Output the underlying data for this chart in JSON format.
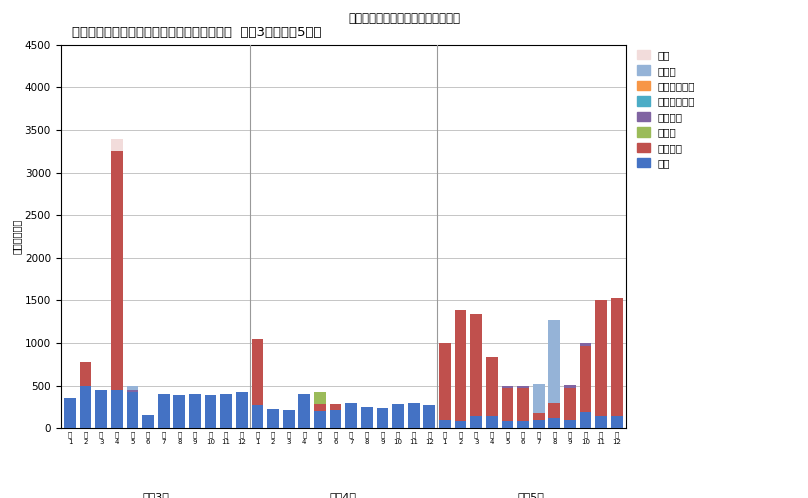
{
  "title_outer": "病因物質別月別発生状況（患者数）",
  "title_inner": "病因物質別患者数の月別発生状況（全体事例  令和3年～令和5年）",
  "ylabel": "患者数（人）",
  "year_labels": [
    "令和3年",
    "令和4年",
    "令和5年"
  ],
  "colors_order": [
    "細菌",
    "ウイルス",
    "寄生虫",
    "化学物質",
    "植物性自然毒",
    "動物性自然毒",
    "その他",
    "不明"
  ],
  "colors": {
    "細菌": "#4472C4",
    "ウイルス": "#C0504D",
    "寄生虫": "#9BBB59",
    "化学物質": "#8064A2",
    "植物性自然毒": "#4BACC6",
    "動物性自然毒": "#F79646",
    "その他": "#95B3D7",
    "不明": "#F2DCDB"
  },
  "legend_order": [
    "不明",
    "その他",
    "動物性自然毒",
    "植物性自然毒",
    "化学物質",
    "寄生虫",
    "ウイルス",
    "細菌"
  ],
  "ylim": [
    0,
    4500
  ],
  "yticks": [
    0,
    500,
    1000,
    1500,
    2000,
    2500,
    3000,
    3500,
    4000,
    4500
  ],
  "bacteria": [
    350,
    500,
    450,
    450,
    420,
    150,
    400,
    390,
    400,
    390,
    400,
    430,
    270,
    230,
    220,
    400,
    200,
    220,
    300,
    250,
    240,
    290,
    300,
    270,
    100,
    90,
    140,
    140,
    90,
    90,
    95,
    115,
    95,
    190,
    145,
    145
  ],
  "virus": [
    0,
    280,
    0,
    2800,
    0,
    0,
    0,
    0,
    0,
    0,
    0,
    0,
    780,
    0,
    0,
    0,
    90,
    70,
    0,
    0,
    0,
    0,
    0,
    0,
    900,
    1300,
    1200,
    700,
    380,
    380,
    90,
    180,
    380,
    780,
    1360,
    1380
  ],
  "parasite": [
    0,
    0,
    0,
    0,
    0,
    0,
    0,
    0,
    0,
    0,
    0,
    0,
    0,
    0,
    0,
    0,
    140,
    0,
    0,
    0,
    0,
    0,
    0,
    0,
    0,
    0,
    0,
    0,
    0,
    0,
    0,
    0,
    0,
    0,
    0,
    0
  ],
  "chemical": [
    0,
    0,
    0,
    0,
    30,
    0,
    0,
    0,
    0,
    0,
    0,
    0,
    0,
    0,
    0,
    0,
    0,
    0,
    0,
    0,
    0,
    0,
    0,
    0,
    0,
    0,
    0,
    0,
    30,
    30,
    0,
    0,
    30,
    30,
    0,
    0
  ],
  "plant_tox": [
    0,
    0,
    0,
    0,
    0,
    0,
    0,
    0,
    0,
    0,
    0,
    0,
    0,
    0,
    0,
    0,
    0,
    0,
    0,
    0,
    0,
    0,
    0,
    0,
    0,
    0,
    0,
    0,
    0,
    0,
    0,
    0,
    0,
    0,
    0,
    0
  ],
  "animal_tox": [
    0,
    0,
    0,
    0,
    0,
    0,
    0,
    0,
    0,
    0,
    0,
    0,
    0,
    0,
    0,
    0,
    0,
    0,
    0,
    0,
    0,
    0,
    0,
    0,
    0,
    0,
    0,
    0,
    0,
    0,
    0,
    0,
    0,
    0,
    0,
    0
  ],
  "other": [
    0,
    0,
    0,
    0,
    50,
    0,
    0,
    0,
    0,
    0,
    0,
    0,
    0,
    0,
    0,
    0,
    0,
    0,
    0,
    0,
    0,
    0,
    0,
    0,
    0,
    0,
    0,
    0,
    0,
    0,
    340,
    980,
    0,
    0,
    0,
    0
  ],
  "unknown": [
    0,
    0,
    0,
    150,
    0,
    0,
    0,
    0,
    0,
    0,
    0,
    0,
    0,
    0,
    0,
    0,
    0,
    0,
    0,
    0,
    0,
    0,
    0,
    0,
    0,
    0,
    0,
    0,
    0,
    0,
    0,
    0,
    0,
    0,
    0,
    0
  ]
}
